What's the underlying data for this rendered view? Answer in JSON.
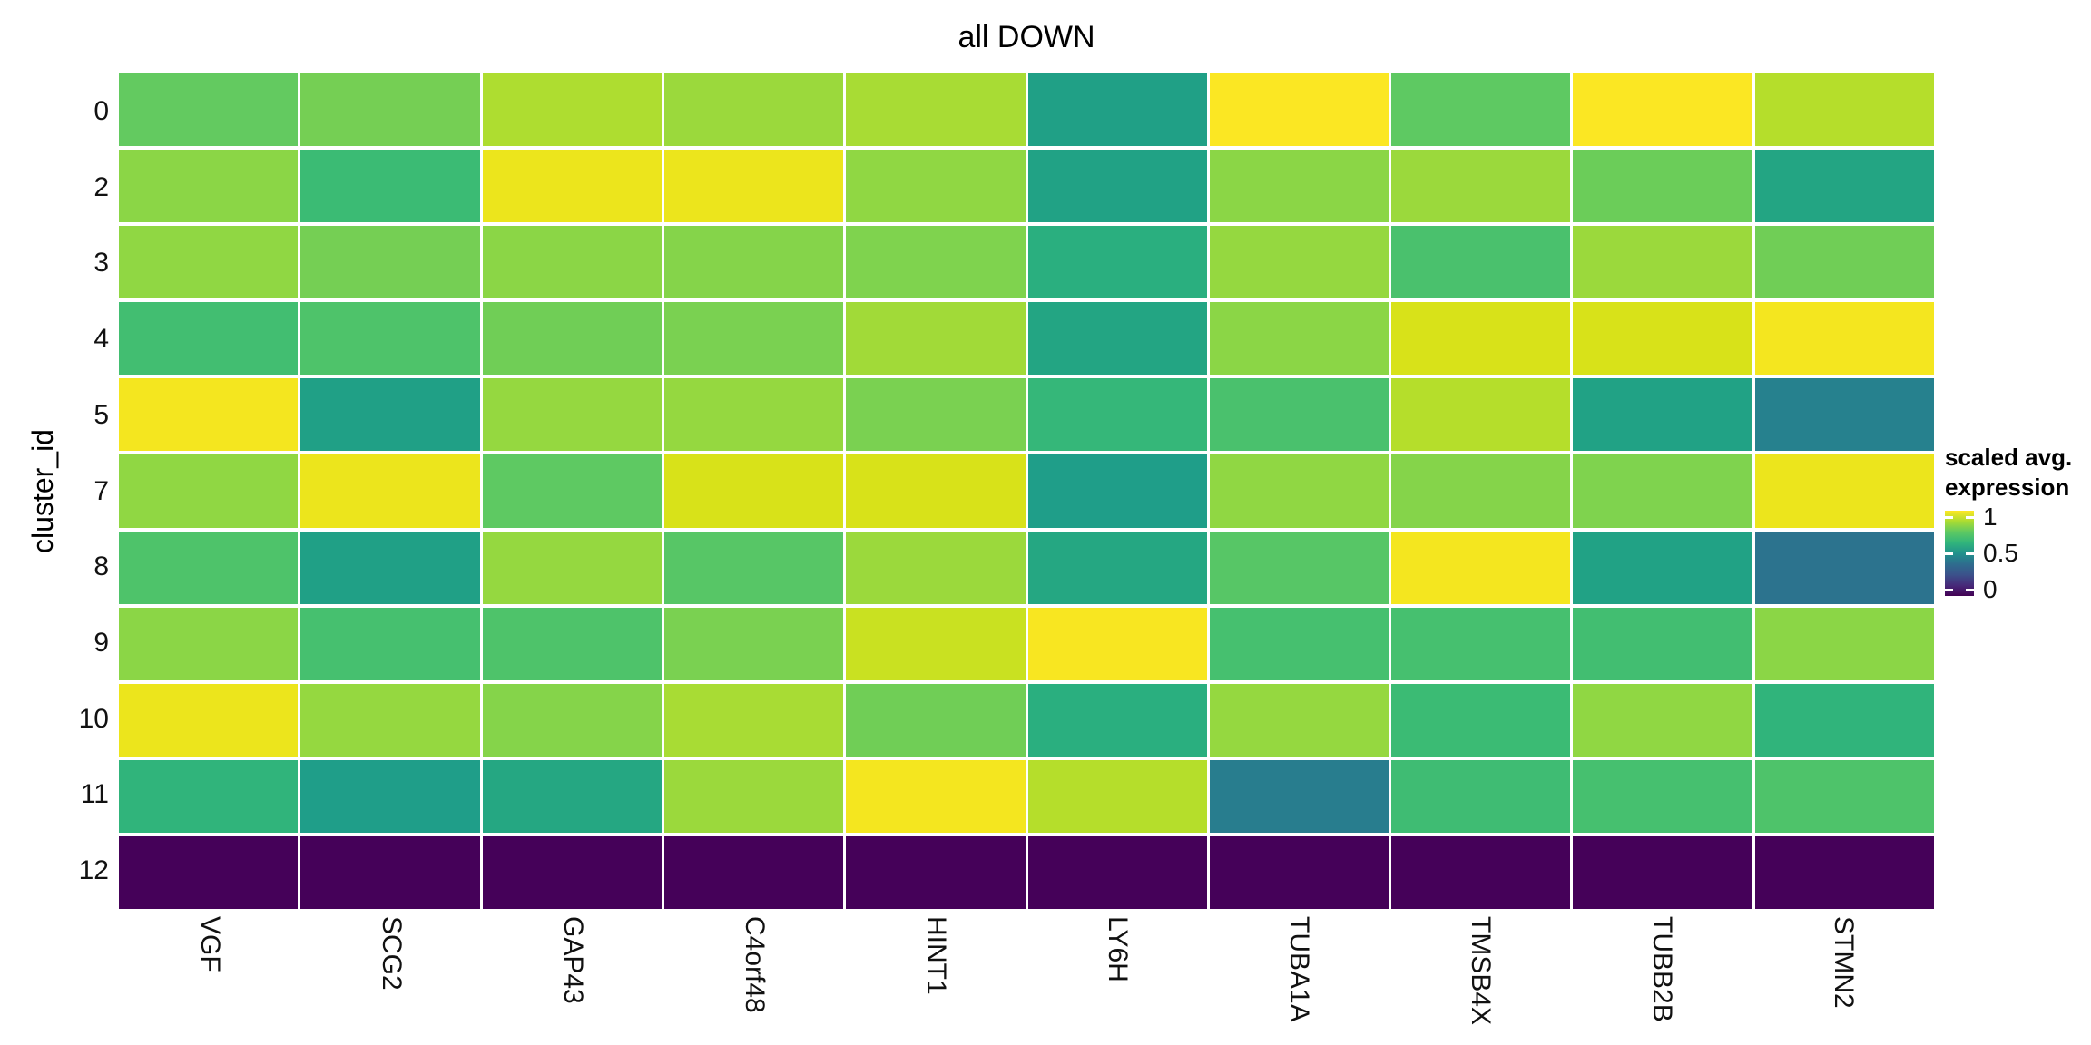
{
  "title": "all DOWN",
  "y_axis": {
    "label": "cluster_id"
  },
  "legend": {
    "title_line1": "scaled avg.",
    "title_line2": "expression",
    "ticks": [
      {
        "label": "1",
        "value": 1.0
      },
      {
        "label": "0.5",
        "value": 0.5
      },
      {
        "label": "0",
        "value": 0.0
      }
    ]
  },
  "colors": {
    "background": "#ffffff",
    "text": "#000000",
    "cell_gap": "#ffffff"
  },
  "chart_data": {
    "type": "heatmap",
    "title": "all DOWN",
    "xlabel": "",
    "ylabel": "cluster_id",
    "legend_position": "right",
    "grid": false,
    "columns": [
      "VGF",
      "SCG2",
      "GAP43",
      "C4orf48",
      "HINT1",
      "LY6H",
      "TUBA1A",
      "TMSB4X",
      "TUBB2B",
      "STMN2"
    ],
    "rows": [
      "0",
      "2",
      "3",
      "4",
      "5",
      "7",
      "8",
      "9",
      "10",
      "11",
      "12"
    ],
    "colorbar": {
      "title": "scaled avg. expression",
      "range": [
        0,
        1
      ],
      "colormap": "viridis",
      "gradient_stops_top_to_bottom": [
        "#fde725",
        "#aadc32",
        "#5ec962",
        "#31b57b",
        "#21918c",
        "#2e6d8e",
        "#3b528b",
        "#472a7a",
        "#440154"
      ]
    },
    "values": [
      [
        0.76,
        0.79,
        0.89,
        0.86,
        0.88,
        0.56,
        0.99,
        0.75,
        0.99,
        0.9
      ],
      [
        0.83,
        0.67,
        0.97,
        0.97,
        0.84,
        0.57,
        0.83,
        0.86,
        0.77,
        0.58
      ],
      [
        0.84,
        0.79,
        0.83,
        0.82,
        0.81,
        0.61,
        0.85,
        0.71,
        0.86,
        0.78
      ],
      [
        0.69,
        0.72,
        0.78,
        0.8,
        0.87,
        0.58,
        0.83,
        0.95,
        0.95,
        0.98
      ],
      [
        0.98,
        0.56,
        0.85,
        0.85,
        0.8,
        0.65,
        0.71,
        0.9,
        0.57,
        0.43
      ],
      [
        0.84,
        0.97,
        0.75,
        0.95,
        0.95,
        0.55,
        0.84,
        0.82,
        0.81,
        0.97
      ],
      [
        0.72,
        0.56,
        0.85,
        0.74,
        0.86,
        0.59,
        0.74,
        0.98,
        0.57,
        0.38
      ],
      [
        0.83,
        0.7,
        0.72,
        0.8,
        0.93,
        0.98,
        0.7,
        0.7,
        0.69,
        0.83
      ],
      [
        0.97,
        0.85,
        0.82,
        0.88,
        0.78,
        0.61,
        0.85,
        0.67,
        0.84,
        0.63
      ],
      [
        0.63,
        0.55,
        0.59,
        0.86,
        0.98,
        0.9,
        0.42,
        0.68,
        0.7,
        0.72
      ],
      [
        0.0,
        0.0,
        0.0,
        0.0,
        0.0,
        0.0,
        0.0,
        0.0,
        0.0,
        0.0
      ]
    ],
    "cell_colors": [
      [
        "#63ca60",
        "#75cf54",
        "#aedd30",
        "#9bd93c",
        "#a8dc34",
        "#20a086",
        "#fbe723",
        "#5ec962",
        "#fbe723",
        "#b5de2b"
      ],
      [
        "#8bd646",
        "#3bbb74",
        "#ece51c",
        "#ece51c",
        "#90d743",
        "#21a285",
        "#8bd646",
        "#9bd93c",
        "#6bcd59",
        "#23a583"
      ],
      [
        "#90d743",
        "#75cf54",
        "#8bd646",
        "#85d44a",
        "#7fd34e",
        "#2aaf7f",
        "#95d840",
        "#4ac16d",
        "#9bd93c",
        "#70ce56"
      ],
      [
        "#42be71",
        "#4ec36a",
        "#70ce56",
        "#7ad151",
        "#a1da38",
        "#23a583",
        "#8bd646",
        "#d8e219",
        "#d8e219",
        "#f4e61f"
      ],
      [
        "#f4e61f",
        "#20a086",
        "#95d840",
        "#95d840",
        "#7ad151",
        "#35b779",
        "#4ac16d",
        "#b5de2b",
        "#21a285",
        "#26818e"
      ],
      [
        "#90d743",
        "#ece51c",
        "#5ec962",
        "#d8e219",
        "#d8e219",
        "#1f9e89",
        "#90d743",
        "#85d44a",
        "#7fd34e",
        "#ece51c"
      ],
      [
        "#4ec36a",
        "#20a086",
        "#95d840",
        "#57c666",
        "#9bd93c",
        "#25a782",
        "#57c666",
        "#f4e61f",
        "#21a285",
        "#2c738e"
      ],
      [
        "#8bd646",
        "#46c06f",
        "#4ec36a",
        "#7ad151",
        "#c9e121",
        "#f8e621",
        "#46c06f",
        "#46c06f",
        "#42be71",
        "#8bd646"
      ],
      [
        "#ece51c",
        "#95d840",
        "#85d44a",
        "#a8dc34",
        "#70ce56",
        "#2aaf7f",
        "#95d840",
        "#3bbb74",
        "#90d743",
        "#30b47b"
      ],
      [
        "#30b47b",
        "#1f9e89",
        "#25a782",
        "#9bd93c",
        "#f4e61f",
        "#b5de2b",
        "#287d8e",
        "#3fbc73",
        "#46c06f",
        "#4ec36a"
      ],
      [
        "#450159",
        "#450159",
        "#450159",
        "#450159",
        "#450159",
        "#450159",
        "#450159",
        "#450159",
        "#450159",
        "#450159"
      ]
    ]
  }
}
